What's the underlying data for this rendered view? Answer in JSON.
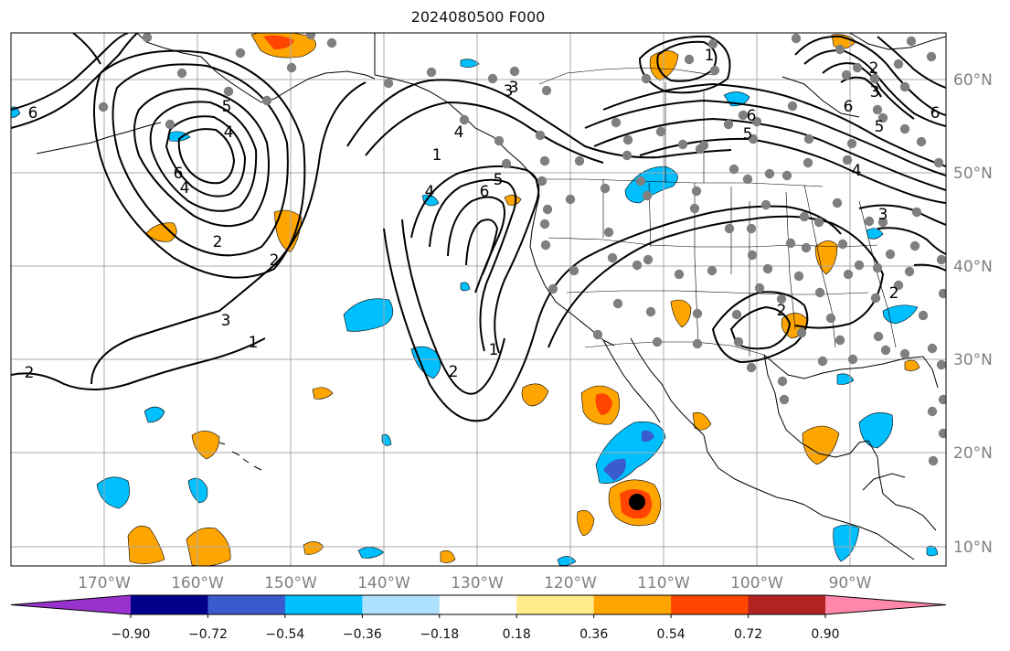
{
  "title": "2024080500 F000",
  "colors": {
    "stations": "#7f7f7f",
    "contour": "#000000",
    "grid": "#aaaaaa",
    "colorbar": [
      "#9932cc",
      "#00008b",
      "#3a5bcc",
      "#00bfff",
      "#aee1ff",
      "#ffffff",
      "#ffeb8a",
      "#ffa500",
      "#ff4500",
      "#b22222",
      "#ff88aa"
    ]
  },
  "map": {
    "lon_ticks": [
      "170°W",
      "160°W",
      "150°W",
      "140°W",
      "130°W",
      "120°W",
      "110°W",
      "100°W",
      "90°W"
    ],
    "lat_ticks": [
      "60°N",
      "50°N",
      "40°N",
      "30°N",
      "20°N",
      "10°N"
    ],
    "contour_labels": [
      "6",
      "5",
      "4",
      "4",
      "3",
      "2",
      "6",
      "1",
      "4",
      "5",
      "6",
      "2",
      "1",
      "3",
      "1",
      "2",
      "1",
      "6",
      "5",
      "3",
      "2",
      "4",
      "6",
      "5",
      "3",
      "2",
      "2",
      "6",
      "4",
      "3",
      "2"
    ]
  },
  "colorbar": {
    "tick_labels": [
      "−0.90",
      "−0.72",
      "−0.54",
      "−0.36",
      "−0.18",
      "0.18",
      "0.36",
      "0.54",
      "0.72",
      "0.90"
    ]
  }
}
